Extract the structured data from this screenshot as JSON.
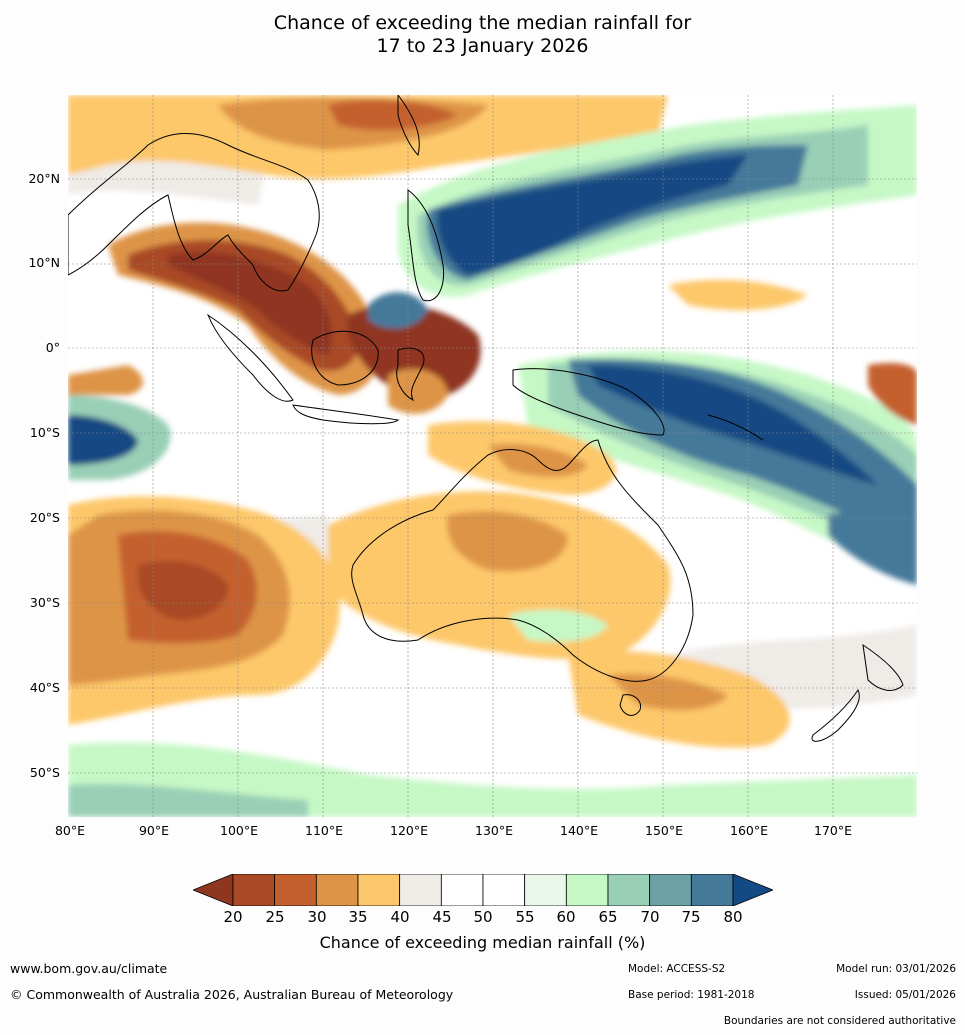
{
  "title": {
    "line1": "Chance of exceeding the median rainfall for",
    "line2": "17 to 23 January 2026"
  },
  "map": {
    "lat_labels": [
      "20°N",
      "10°N",
      "0°",
      "10°S",
      "20°S",
      "30°S",
      "40°S",
      "50°S"
    ],
    "lon_labels": [
      "80°E",
      "90°E",
      "100°E",
      "110°E",
      "120°E",
      "130°E",
      "140°E",
      "150°E",
      "160°E",
      "170°E"
    ]
  },
  "legend": {
    "ticks": [
      "20",
      "25",
      "30",
      "35",
      "40",
      "45",
      "50",
      "55",
      "60",
      "65",
      "70",
      "75",
      "80"
    ],
    "colors": [
      "#8f3620",
      "#a94a26",
      "#c4602e",
      "#de9447",
      "#fdc86b",
      "#efebe7",
      "#ffffff",
      "#ffffff",
      "#e9f6ea",
      "#c6f8c6",
      "#99cfb6",
      "#6ca2a6",
      "#44799a",
      "#134a83"
    ],
    "title": "Chance of exceeding median rainfall (%)"
  },
  "footer": {
    "website": "www.bom.gov.au/climate",
    "copyright": "© Commonwealth of Australia 2026, Australian Bureau of Meteorology",
    "model": "Model: ACCESS-S2",
    "base_period": "Base period: 1981-2018",
    "model_run": "Model run: 03/01/2026",
    "issued": "Issued: 05/01/2026",
    "disclaimer": "Boundaries are not considered authoritative"
  }
}
